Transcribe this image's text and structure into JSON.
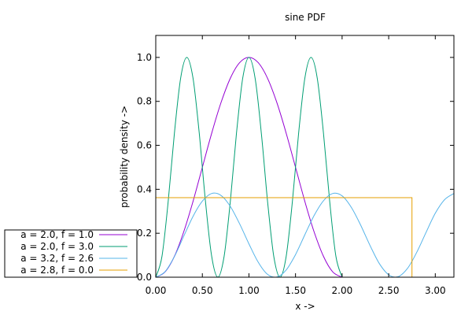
{
  "chart_data": {
    "type": "line",
    "title": "sine PDF",
    "xlabel": "x ->",
    "ylabel": "probability density ->",
    "xlim": [
      0,
      3.2
    ],
    "ylim": [
      0,
      1.1
    ],
    "xticks": [
      0,
      0.5,
      1.0,
      1.5,
      2.0,
      2.5,
      3.0
    ],
    "xtick_labels": [
      "0.00",
      "0.50",
      "1.00",
      "1.50",
      "2.00",
      "2.50",
      "3.00"
    ],
    "yticks": [
      0,
      0.2,
      0.4,
      0.6,
      0.8,
      1.0
    ],
    "ytick_labels": [
      "0.0",
      "0.2",
      "0.4",
      "0.6",
      "0.8",
      "1.0"
    ],
    "grid": false,
    "legend_position": "bottom-left-outside",
    "series": [
      {
        "name": "a = 2.0, f = 1.0",
        "color": "#9400d3",
        "x": [
          0,
          0.1,
          0.2,
          0.3,
          0.4,
          0.5,
          0.6,
          0.7,
          0.8,
          0.9,
          1.0,
          1.1,
          1.2,
          1.3,
          1.4,
          1.5,
          1.6,
          1.7,
          1.8,
          1.9,
          2.0
        ],
        "y": [
          0,
          0.024,
          0.095,
          0.206,
          0.345,
          0.5,
          0.655,
          0.794,
          0.905,
          0.976,
          1.0,
          0.976,
          0.905,
          0.794,
          0.655,
          0.5,
          0.345,
          0.206,
          0.095,
          0.024,
          0
        ]
      },
      {
        "name": "a = 2.0, f = 3.0",
        "color": "#009e73",
        "x": [
          0,
          0.0667,
          0.1333,
          0.2,
          0.2667,
          0.3333,
          0.4,
          0.4667,
          0.5333,
          0.6,
          0.6667,
          0.7333,
          0.8,
          0.8667,
          0.9333,
          1.0,
          1.0667,
          1.1333,
          1.2,
          1.2667,
          1.3333,
          1.4,
          1.4667,
          1.5333,
          1.6,
          1.6667,
          1.7333,
          1.8,
          1.8667,
          1.9333,
          2.0
        ],
        "y": [
          0,
          0.095,
          0.345,
          0.655,
          0.905,
          1.0,
          0.905,
          0.655,
          0.345,
          0.095,
          0,
          0.095,
          0.345,
          0.655,
          0.905,
          1.0,
          0.905,
          0.655,
          0.345,
          0.095,
          0,
          0.095,
          0.345,
          0.655,
          0.905,
          1.0,
          0.905,
          0.655,
          0.345,
          0.095,
          0
        ]
      },
      {
        "name": "a = 3.2, f = 2.6",
        "color": "#56b4e9",
        "x": [
          0,
          0.1,
          0.2,
          0.3,
          0.4,
          0.5,
          0.6,
          0.7,
          0.8,
          0.9,
          1.0,
          1.1,
          1.2,
          1.3,
          1.4,
          1.5,
          1.6,
          1.7,
          1.8,
          1.9,
          2.0,
          2.1,
          2.2,
          2.3,
          2.4,
          2.5,
          2.6,
          2.7,
          2.8,
          2.9,
          3.0,
          3.1,
          3.2
        ],
        "y": [
          0,
          0.025,
          0.094,
          0.186,
          0.277,
          0.346,
          0.381,
          0.372,
          0.322,
          0.243,
          0.152,
          0.068,
          0.013,
          0.001,
          0.033,
          0.103,
          0.193,
          0.281,
          0.348,
          0.381,
          0.37,
          0.317,
          0.236,
          0.144,
          0.062,
          0.011,
          0.002,
          0.039,
          0.112,
          0.203,
          0.291,
          0.353,
          0.381
        ]
      },
      {
        "name": "a = 2.8, f = 0.0",
        "color": "#e69f00",
        "x": [
          0,
          0,
          2.75,
          2.75
        ],
        "y": [
          0,
          0.362,
          0.362,
          0
        ]
      }
    ]
  }
}
